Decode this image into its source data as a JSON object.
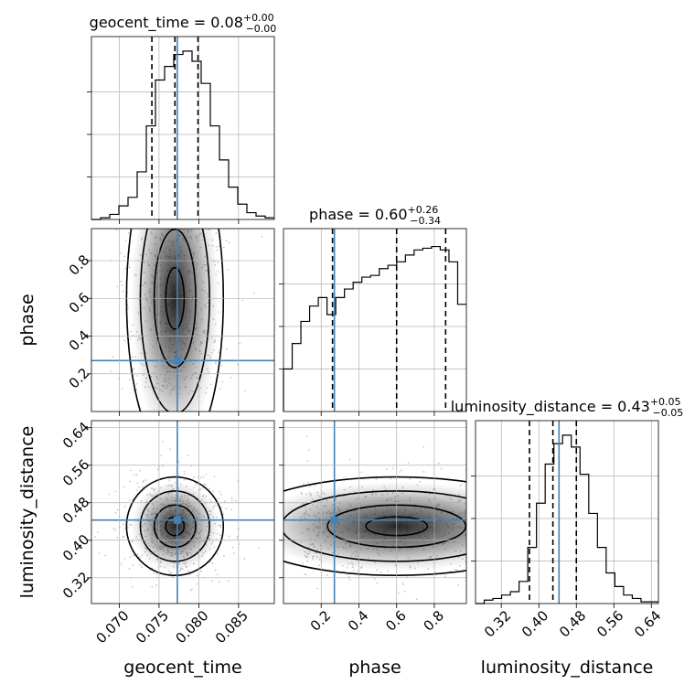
{
  "colors": {
    "truth": "#4682b4",
    "hist": "#000000",
    "grid": "#b0b0b0",
    "scatter": "#9a9a9a"
  },
  "chart_data": {
    "type": "corner",
    "grid": true,
    "parameters": [
      {
        "name": "geocent_time",
        "xlabel": "geocent_time",
        "ylabel": "",
        "range": [
          0.0665,
          0.0895
        ],
        "ticks": [
          0.07,
          0.075,
          0.08,
          0.085
        ],
        "tick_labels": [
          "0.070",
          "0.075",
          "0.080",
          "0.085"
        ],
        "title": {
          "base": "geocent_time = 0.08",
          "plus": "+0.00",
          "minus": "−0.00"
        },
        "quantiles": [
          0.0741,
          0.077,
          0.0799
        ],
        "truth": 0.0773,
        "hist": [
          0.0,
          0.01,
          0.03,
          0.08,
          0.13,
          0.28,
          0.55,
          0.82,
          0.9,
          0.97,
          0.99,
          0.93,
          0.8,
          0.55,
          0.35,
          0.19,
          0.09,
          0.04,
          0.02,
          0.01
        ]
      },
      {
        "name": "phase",
        "xlabel": "phase",
        "ylabel": "phase",
        "range": [
          0.0,
          0.97
        ],
        "ticks": [
          0.2,
          0.4,
          0.6,
          0.8
        ],
        "tick_labels": [
          "0.2",
          "0.4",
          "0.6",
          "0.8"
        ],
        "title": {
          "base": "phase = 0.60",
          "plus": "+0.26",
          "minus": "−0.34"
        },
        "quantiles": [
          0.26,
          0.6,
          0.86
        ],
        "truth": 0.27,
        "hist": [
          0.25,
          0.4,
          0.53,
          0.62,
          0.67,
          0.57,
          0.67,
          0.72,
          0.76,
          0.79,
          0.8,
          0.84,
          0.86,
          0.88,
          0.92,
          0.95,
          0.96,
          0.97,
          0.95,
          0.88,
          0.63
        ]
      },
      {
        "name": "luminosity_distance",
        "xlabel": "luminosity_distance",
        "ylabel": "luminosity_distance",
        "range": [
          0.265,
          0.655
        ],
        "ticks": [
          0.32,
          0.4,
          0.48,
          0.56,
          0.64
        ],
        "tick_labels": [
          "0.32",
          "0.40",
          "0.48",
          "0.56",
          "0.64"
        ],
        "title": {
          "base": "luminosity_distance = 0.43",
          "plus": "+0.05",
          "minus": "−0.05"
        },
        "quantiles": [
          0.38,
          0.43,
          0.48
        ],
        "truth": 0.443,
        "hist": [
          0.0,
          0.02,
          0.03,
          0.05,
          0.07,
          0.13,
          0.33,
          0.59,
          0.82,
          0.94,
          0.99,
          0.92,
          0.76,
          0.53,
          0.33,
          0.18,
          0.1,
          0.05,
          0.03,
          0.01,
          0.01
        ]
      }
    ]
  }
}
